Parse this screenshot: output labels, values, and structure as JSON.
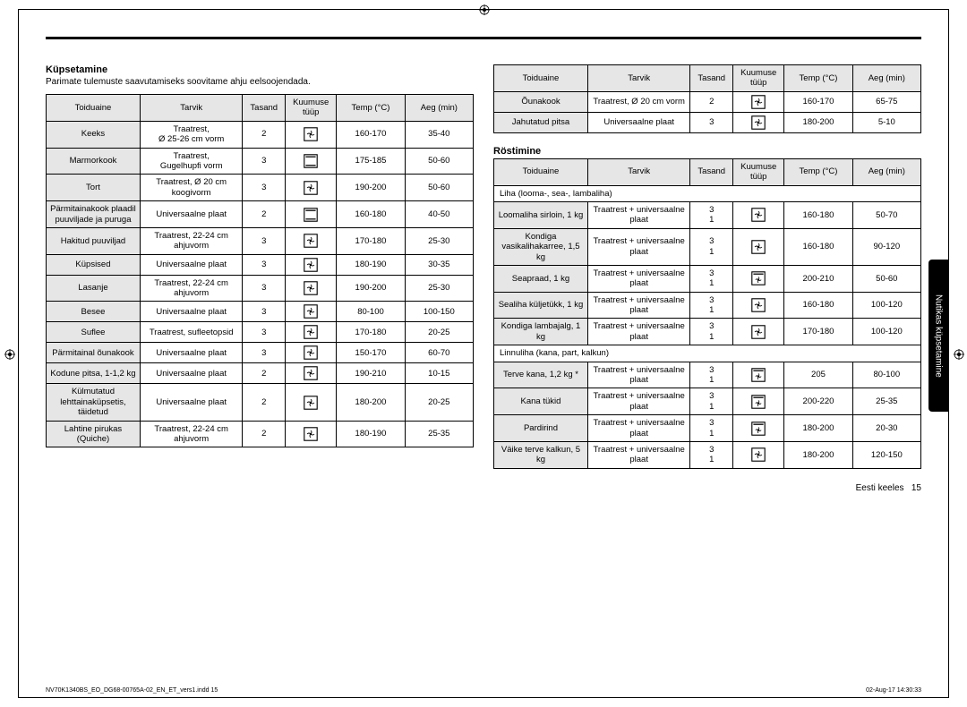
{
  "section_baking": {
    "title": "Küpsetamine",
    "subtitle": "Parimate tulemuste saavutamiseks soovitame ahju eelsoojendada.",
    "columns": [
      "Toiduaine",
      "Tarvik",
      "Tasand",
      "Kuumuse tüüp",
      "Temp (°C)",
      "Aeg (min)"
    ],
    "rows": [
      {
        "food": "Keeks",
        "acc": "Traatrest,\nØ 25-26 cm vorm",
        "level": "2",
        "heat": "fan",
        "temp": "160-170",
        "time": "35-40"
      },
      {
        "food": "Marmorkook",
        "acc": "Traatrest,\nGugelhupfi vorm",
        "level": "3",
        "heat": "top-bottom",
        "temp": "175-185",
        "time": "50-60"
      },
      {
        "food": "Tort",
        "acc": "Traatrest, Ø 20 cm koogivorm",
        "level": "3",
        "heat": "fan",
        "temp": "190-200",
        "time": "50-60"
      },
      {
        "food": "Pärmitainakook plaadil puuviljade ja puruga",
        "acc": "Universaalne plaat",
        "level": "2",
        "heat": "top-bottom",
        "temp": "160-180",
        "time": "40-50"
      },
      {
        "food": "Hakitud puuviljad",
        "acc": "Traatrest, 22-24 cm ahjuvorm",
        "level": "3",
        "heat": "fan",
        "temp": "170-180",
        "time": "25-30"
      },
      {
        "food": "Küpsised",
        "acc": "Universaalne plaat",
        "level": "3",
        "heat": "fan",
        "temp": "180-190",
        "time": "30-35"
      },
      {
        "food": "Lasanje",
        "acc": "Traatrest, 22-24 cm ahjuvorm",
        "level": "3",
        "heat": "fan",
        "temp": "190-200",
        "time": "25-30"
      },
      {
        "food": "Besee",
        "acc": "Universaalne plaat",
        "level": "3",
        "heat": "fan",
        "temp": "80-100",
        "time": "100-150"
      },
      {
        "food": "Suflee",
        "acc": "Traatrest, sufleetopsid",
        "level": "3",
        "heat": "fan",
        "temp": "170-180",
        "time": "20-25"
      },
      {
        "food": "Pärmitainal õunakook",
        "acc": "Universaalne plaat",
        "level": "3",
        "heat": "fan",
        "temp": "150-170",
        "time": "60-70"
      },
      {
        "food": "Kodune pitsa, 1-1,2 kg",
        "acc": "Universaalne plaat",
        "level": "2",
        "heat": "fan",
        "temp": "190-210",
        "time": "10-15"
      },
      {
        "food": "Külmutatud lehttainaküpsetis, täidetud",
        "acc": "Universaalne plaat",
        "level": "2",
        "heat": "fan",
        "temp": "180-200",
        "time": "20-25"
      },
      {
        "food": "Lahtine pirukas (Quiche)",
        "acc": "Traatrest, 22-24 cm ahjuvorm",
        "level": "2",
        "heat": "fan",
        "temp": "180-190",
        "time": "25-35"
      }
    ],
    "rowsB": [
      {
        "food": "Õunakook",
        "acc": "Traatrest, Ø 20 cm vorm",
        "level": "2",
        "heat": "fan",
        "temp": "160-170",
        "time": "65-75"
      },
      {
        "food": "Jahutatud pitsa",
        "acc": "Universaalne plaat",
        "level": "3",
        "heat": "fan",
        "temp": "180-200",
        "time": "5-10"
      }
    ]
  },
  "section_roasting": {
    "title": "Röstimine",
    "columns": [
      "Toiduaine",
      "Tarvik",
      "Tasand",
      "Kuumuse tüüp",
      "Temp (°C)",
      "Aeg (min)"
    ],
    "group1": "Liha (looma-, sea-, lambaliha)",
    "rows1": [
      {
        "food": "Loomaliha sirloin, 1 kg",
        "acc": "Traatrest + universaalne plaat",
        "level": "3\n1",
        "heat": "fan",
        "temp": "160-180",
        "time": "50-70"
      },
      {
        "food": "Kondiga vasikalihakarree, 1,5 kg",
        "acc": "Traatrest + universaalne plaat",
        "level": "3\n1",
        "heat": "fan",
        "temp": "160-180",
        "time": "90-120"
      },
      {
        "food": "Seapraad, 1 kg",
        "acc": "Traatrest + universaalne plaat",
        "level": "3\n1",
        "heat": "fan-top",
        "temp": "200-210",
        "time": "50-60"
      },
      {
        "food": "Sealiha küljetükk, 1 kg",
        "acc": "Traatrest + universaalne plaat",
        "level": "3\n1",
        "heat": "fan",
        "temp": "160-180",
        "time": "100-120"
      },
      {
        "food": "Kondiga lambajalg, 1 kg",
        "acc": "Traatrest + universaalne plaat",
        "level": "3\n1",
        "heat": "fan",
        "temp": "170-180",
        "time": "100-120"
      }
    ],
    "group2": "Linnuliha (kana, part, kalkun)",
    "rows2": [
      {
        "food": "Terve kana, 1,2 kg *",
        "acc": "Traatrest + universaalne plaat",
        "level": "3\n1",
        "heat": "fan-top",
        "temp": "205",
        "time": "80-100"
      },
      {
        "food": "Kana tükid",
        "acc": "Traatrest + universaalne plaat",
        "level": "3\n1",
        "heat": "fan-top",
        "temp": "200-220",
        "time": "25-35"
      },
      {
        "food": "Pardirind",
        "acc": "Traatrest + universaalne plaat",
        "level": "3\n1",
        "heat": "fan-top",
        "temp": "180-200",
        "time": "20-30"
      },
      {
        "food": "Väike terve kalkun, 5 kg",
        "acc": "Traatrest + universaalne plaat",
        "level": "3\n1",
        "heat": "fan",
        "temp": "180-200",
        "time": "120-150"
      }
    ]
  },
  "tab_label": "Nutikas küpsetamine",
  "footer_lang": "Eesti keeles",
  "footer_page": "15",
  "meta_left": "NV70K1340BS_EO_DG68-00765A-02_EN_ET_vers1.indd   15",
  "meta_right": "02-Aug-17   14:30:33",
  "col_widths": {
    "c1": "22%",
    "c2": "24%",
    "c3": "10%",
    "c4": "12%",
    "c5": "16%",
    "c6": "16%"
  }
}
